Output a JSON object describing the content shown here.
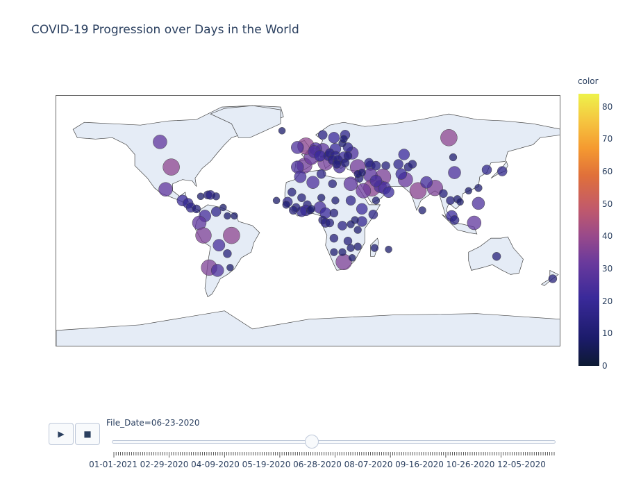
{
  "title": "COVID-19 Progression over Days in the World",
  "colorbar": {
    "title": "color",
    "ticks": [
      "0",
      "10",
      "20",
      "30",
      "40",
      "50",
      "60",
      "70",
      "80"
    ],
    "range": [
      0,
      84
    ]
  },
  "controls": {
    "play_icon": "▶",
    "stop_icon": "■"
  },
  "slider": {
    "current_label": "File_Date=06-23-2020",
    "position_fraction": 0.45,
    "tick_labels": [
      "01-01-2021",
      "02-29-2020",
      "04-09-2020",
      "05-19-2020",
      "06-28-2020",
      "08-07-2020",
      "09-16-2020",
      "10-26-2020",
      "12-05-2020"
    ]
  },
  "map_points": [
    {
      "lon": -98,
      "lat": 39,
      "v": 45
    },
    {
      "lon": -106,
      "lat": 57,
      "v": 35
    },
    {
      "lon": -102,
      "lat": 23,
      "v": 35
    },
    {
      "lon": -90,
      "lat": 15,
      "v": 25
    },
    {
      "lon": -86,
      "lat": 13,
      "v": 22
    },
    {
      "lon": -84,
      "lat": 10,
      "v": 20
    },
    {
      "lon": -80,
      "lat": 9,
      "v": 15
    },
    {
      "lon": -77,
      "lat": 18,
      "v": 10
    },
    {
      "lon": -72,
      "lat": 19,
      "v": 15
    },
    {
      "lon": -70,
      "lat": 19,
      "v": 18
    },
    {
      "lon": -66,
      "lat": 18,
      "v": 12
    },
    {
      "lon": -61,
      "lat": 10,
      "v": 10
    },
    {
      "lon": -74,
      "lat": 4,
      "v": 28
    },
    {
      "lon": -66,
      "lat": 7,
      "v": 20
    },
    {
      "lon": -78,
      "lat": -1,
      "v": 35
    },
    {
      "lon": -75,
      "lat": -10,
      "v": 42
    },
    {
      "lon": -64,
      "lat": -17,
      "v": 28
    },
    {
      "lon": -55,
      "lat": -10,
      "v": 45
    },
    {
      "lon": -58,
      "lat": -23,
      "v": 15
    },
    {
      "lon": -56,
      "lat": -33,
      "v": 10
    },
    {
      "lon": -71,
      "lat": -33,
      "v": 42
    },
    {
      "lon": -65,
      "lat": -35,
      "v": 30
    },
    {
      "lon": -58,
      "lat": 4,
      "v": 10
    },
    {
      "lon": -53,
      "lat": 4,
      "v": 10
    },
    {
      "lon": -3,
      "lat": 40,
      "v": 40
    },
    {
      "lon": 2,
      "lat": 46,
      "v": 38
    },
    {
      "lon": -8,
      "lat": 39,
      "v": 30
    },
    {
      "lon": 12,
      "lat": 42,
      "v": 40
    },
    {
      "lon": 10,
      "lat": 51,
      "v": 35
    },
    {
      "lon": -2,
      "lat": 54,
      "v": 45
    },
    {
      "lon": -8,
      "lat": 53,
      "v": 30
    },
    {
      "lon": 5,
      "lat": 52,
      "v": 30
    },
    {
      "lon": 4,
      "lat": 50,
      "v": 30
    },
    {
      "lon": 8,
      "lat": 47,
      "v": 25
    },
    {
      "lon": 14,
      "lat": 47,
      "v": 20
    },
    {
      "lon": 19,
      "lat": 52,
      "v": 25
    },
    {
      "lon": 15,
      "lat": 49,
      "v": 18
    },
    {
      "lon": 19,
      "lat": 47,
      "v": 20
    },
    {
      "lon": 25,
      "lat": 46,
      "v": 25
    },
    {
      "lon": 22,
      "lat": 39,
      "v": 28
    },
    {
      "lon": 35,
      "lat": 39,
      "v": 40
    },
    {
      "lon": 31,
      "lat": 49,
      "v": 30
    },
    {
      "lon": 28,
      "lat": 53,
      "v": 20
    },
    {
      "lon": 18,
      "lat": 60,
      "v": 25
    },
    {
      "lon": 10,
      "lat": 62,
      "v": 18
    },
    {
      "lon": 26,
      "lat": 62,
      "v": 20
    },
    {
      "lon": 24,
      "lat": 56,
      "v": 12
    },
    {
      "lon": 25,
      "lat": 59,
      "v": 12
    },
    {
      "lon": 17,
      "lat": 44,
      "v": 18
    },
    {
      "lon": 21,
      "lat": 44,
      "v": 18
    },
    {
      "lon": 20,
      "lat": 41,
      "v": 15
    },
    {
      "lon": 26,
      "lat": 42,
      "v": 15
    },
    {
      "lon": 28,
      "lat": 47,
      "v": 15
    },
    {
      "lon": 44,
      "lat": 40,
      "v": 20
    },
    {
      "lon": 43,
      "lat": 42,
      "v": 18
    },
    {
      "lon": 48,
      "lat": 40,
      "v": 18
    },
    {
      "lon": 55,
      "lat": 40,
      "v": 15
    },
    {
      "lon": 68,
      "lat": 48,
      "v": 25
    },
    {
      "lon": 64,
      "lat": 41,
      "v": 20
    },
    {
      "lon": 71,
      "lat": 39,
      "v": 15
    },
    {
      "lon": 74,
      "lat": 41,
      "v": 15
    },
    {
      "lon": 100,
      "lat": 60,
      "v": 45
    },
    {
      "lon": 104,
      "lat": 35,
      "v": 30
    },
    {
      "lon": 127,
      "lat": 37,
      "v": 20
    },
    {
      "lon": 138,
      "lat": 36,
      "v": 20
    },
    {
      "lon": 103,
      "lat": 46,
      "v": 12
    },
    {
      "lon": 53,
      "lat": 32,
      "v": 42
    },
    {
      "lon": 44,
      "lat": 33,
      "v": 35
    },
    {
      "lon": 45,
      "lat": 24,
      "v": 45
    },
    {
      "lon": 39,
      "lat": 22,
      "v": 38
    },
    {
      "lon": 51,
      "lat": 25,
      "v": 30
    },
    {
      "lon": 54,
      "lat": 24,
      "v": 30
    },
    {
      "lon": 48,
      "lat": 29,
      "v": 28
    },
    {
      "lon": 36,
      "lat": 31,
      "v": 15
    },
    {
      "lon": 35,
      "lat": 34,
      "v": 12
    },
    {
      "lon": 38,
      "lat": 35,
      "v": 12
    },
    {
      "lon": 57,
      "lat": 21,
      "v": 25
    },
    {
      "lon": 48,
      "lat": 15,
      "v": 12
    },
    {
      "lon": 69,
      "lat": 30,
      "v": 38
    },
    {
      "lon": 66,
      "lat": 34,
      "v": 25
    },
    {
      "lon": 78,
      "lat": 22,
      "v": 45
    },
    {
      "lon": 90,
      "lat": 24,
      "v": 42
    },
    {
      "lon": 84,
      "lat": 28,
      "v": 28
    },
    {
      "lon": 81,
      "lat": 8,
      "v": 12
    },
    {
      "lon": 96,
      "lat": 20,
      "v": 15
    },
    {
      "lon": 101,
      "lat": 15,
      "v": 15
    },
    {
      "lon": 106,
      "lat": 16,
      "v": 12
    },
    {
      "lon": 108,
      "lat": 14,
      "v": 10
    },
    {
      "lon": 102,
      "lat": 4,
      "v": 25
    },
    {
      "lon": 104,
      "lat": 1,
      "v": 18
    },
    {
      "lon": 121,
      "lat": 13,
      "v": 30
    },
    {
      "lon": 118,
      "lat": -1,
      "v": 35
    },
    {
      "lon": 114,
      "lat": 22,
      "v": 10
    },
    {
      "lon": 121,
      "lat": 24,
      "v": 12
    },
    {
      "lon": 134,
      "lat": -25,
      "v": 15
    },
    {
      "lon": 174,
      "lat": -41,
      "v": 15
    },
    {
      "lon": 3,
      "lat": 28,
      "v": 30
    },
    {
      "lon": -6,
      "lat": 32,
      "v": 28
    },
    {
      "lon": 9,
      "lat": 34,
      "v": 18
    },
    {
      "lon": 17,
      "lat": 27,
      "v": 15
    },
    {
      "lon": 30,
      "lat": 27,
      "v": 35
    },
    {
      "lon": 30,
      "lat": 15,
      "v": 20
    },
    {
      "lon": -12,
      "lat": 21,
      "v": 15
    },
    {
      "lon": -15,
      "lat": 14,
      "v": 20
    },
    {
      "lon": -1,
      "lat": 12,
      "v": 15
    },
    {
      "lon": -5,
      "lat": 17,
      "v": 15
    },
    {
      "lon": 9,
      "lat": 17,
      "v": 12
    },
    {
      "lon": 8,
      "lat": 10,
      "v": 28
    },
    {
      "lon": -2,
      "lat": 8,
      "v": 25
    },
    {
      "lon": -5,
      "lat": 7,
      "v": 22
    },
    {
      "lon": -9,
      "lat": 10,
      "v": 15
    },
    {
      "lon": -11,
      "lat": 8,
      "v": 15
    },
    {
      "lon": -16,
      "lat": 12,
      "v": 12
    },
    {
      "lon": 1,
      "lat": 8,
      "v": 12
    },
    {
      "lon": 2,
      "lat": 9,
      "v": 12
    },
    {
      "lon": 12,
      "lat": 6,
      "v": 25
    },
    {
      "lon": 18,
      "lat": 6,
      "v": 15
    },
    {
      "lon": 19,
      "lat": 15,
      "v": 12
    },
    {
      "lon": 10,
      "lat": 1,
      "v": 15
    },
    {
      "lon": 12,
      "lat": -1,
      "v": 18
    },
    {
      "lon": 15,
      "lat": -1,
      "v": 15
    },
    {
      "lon": 24,
      "lat": -3,
      "v": 18
    },
    {
      "lon": 18,
      "lat": -12,
      "v": 15
    },
    {
      "lon": 38,
      "lat": 9,
      "v": 25
    },
    {
      "lon": 46,
      "lat": 5,
      "v": 18
    },
    {
      "lon": 38,
      "lat": 0,
      "v": 22
    },
    {
      "lon": 33,
      "lat": 1,
      "v": 12
    },
    {
      "lon": 35,
      "lat": -6,
      "v": 12
    },
    {
      "lon": 30,
      "lat": -2,
      "v": 12
    },
    {
      "lon": 28,
      "lat": -14,
      "v": 15
    },
    {
      "lon": 30,
      "lat": -19,
      "v": 12
    },
    {
      "lon": 35,
      "lat": -18,
      "v": 12
    },
    {
      "lon": 47,
      "lat": -19,
      "v": 12
    },
    {
      "lon": 25,
      "lat": -29,
      "v": 42
    },
    {
      "lon": 24,
      "lat": -22,
      "v": 12
    },
    {
      "lon": 18,
      "lat": -22,
      "v": 12
    },
    {
      "lon": 31,
      "lat": -26,
      "v": 10
    },
    {
      "lon": -23,
      "lat": 15,
      "v": 10
    },
    {
      "lon": -19,
      "lat": 65,
      "v": 10
    },
    {
      "lon": 57,
      "lat": -20,
      "v": 10
    }
  ]
}
